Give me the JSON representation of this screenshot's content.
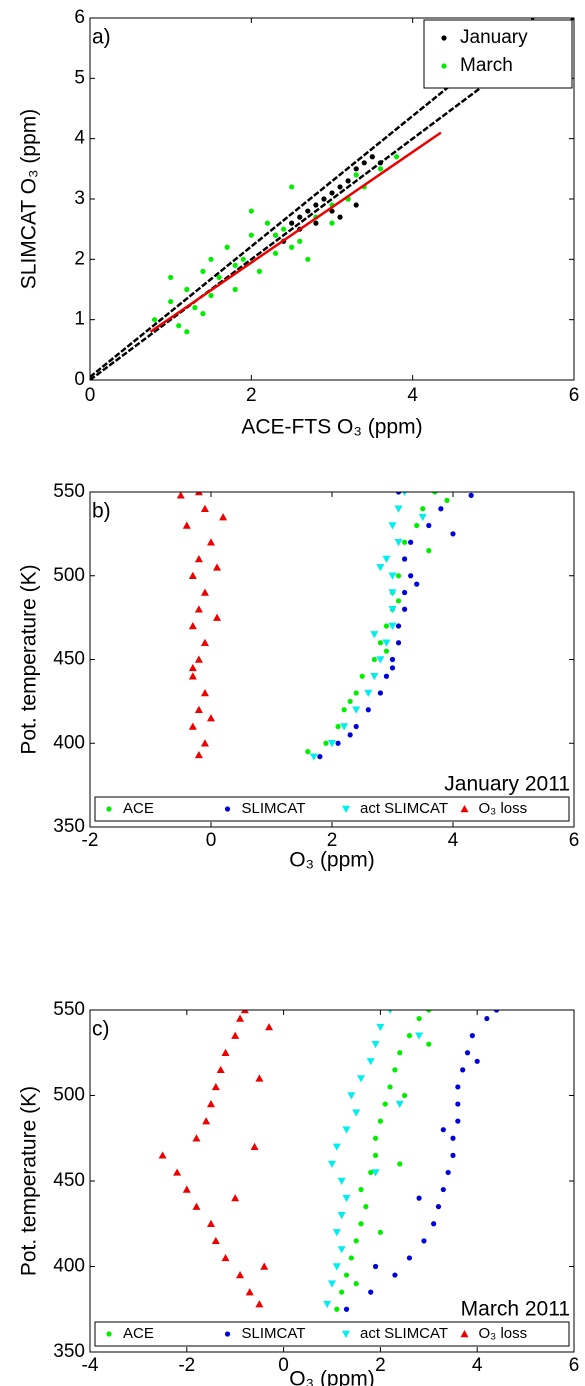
{
  "chart_data": [
    {
      "type": "scatter",
      "annotation": "a)",
      "xlabel": "ACE-FTS O₃ (ppm)",
      "ylabel": "SLIMCAT O₃ (ppm)",
      "xlim": [
        0,
        6
      ],
      "ylim": [
        0,
        6
      ],
      "xticks": [
        0,
        2,
        4,
        6
      ],
      "yticks": [
        0,
        1,
        2,
        3,
        4,
        5,
        6
      ],
      "legend": "upper right",
      "series": [
        {
          "name": "January",
          "color": "#000000",
          "marker": "circle",
          "x": [
            2.3,
            2.5,
            2.6,
            2.7,
            2.8,
            2.9,
            3.0,
            3.1,
            3.2,
            3.3,
            3.4,
            3.5,
            3.6,
            2.4,
            2.8,
            3.0,
            3.2,
            3.3,
            3.1,
            2.6
          ],
          "values": [
            2.4,
            2.6,
            2.7,
            2.8,
            2.9,
            3.0,
            3.1,
            3.2,
            3.3,
            3.5,
            3.6,
            3.7,
            3.6,
            2.3,
            2.6,
            2.8,
            3.0,
            2.9,
            2.7,
            2.5
          ]
        },
        {
          "name": "March",
          "color": "#00ee00",
          "marker": "circle",
          "x": [
            0.8,
            1.0,
            1.1,
            1.2,
            1.3,
            1.4,
            1.5,
            1.6,
            1.7,
            1.8,
            1.9,
            2.0,
            2.1,
            2.2,
            2.3,
            2.4,
            2.5,
            2.6,
            2.8,
            3.0,
            3.2,
            3.4,
            3.6,
            3.8,
            1.2,
            1.5,
            1.8,
            2.0,
            2.3,
            2.7,
            3.0,
            1.0,
            1.4,
            2.5,
            3.3
          ],
          "values": [
            1.0,
            1.3,
            0.9,
            1.5,
            1.2,
            1.8,
            1.4,
            1.7,
            2.2,
            1.9,
            2.0,
            2.4,
            1.8,
            2.6,
            2.1,
            2.5,
            3.2,
            2.3,
            2.7,
            2.6,
            3.0,
            3.2,
            3.5,
            3.7,
            0.8,
            2.0,
            1.5,
            2.8,
            2.4,
            2.0,
            2.9,
            1.7,
            1.1,
            2.2,
            3.4
          ]
        }
      ],
      "lines": [
        {
          "x": [
            0,
            6
          ],
          "values": [
            0,
            6
          ],
          "color": "#000000",
          "dash": true
        },
        {
          "x": [
            0,
            5.5
          ],
          "values": [
            0.05,
            6
          ],
          "color": "#000000",
          "dash": true
        },
        {
          "x": [
            0.75,
            4.35
          ],
          "values": [
            0.8,
            4.1
          ],
          "color": "#ee0000",
          "dash": false
        }
      ]
    },
    {
      "type": "scatter",
      "annotation": "b)",
      "note": "January 2011",
      "xlabel": "O₃ (ppm)",
      "ylabel": "Pot. temperature (K)",
      "xlim": [
        -2,
        6
      ],
      "ylim": [
        350,
        550
      ],
      "xticks": [
        -2,
        0,
        2,
        4,
        6
      ],
      "yticks": [
        350,
        400,
        450,
        500,
        550
      ],
      "legend": "lower center",
      "series": [
        {
          "name": "ACE",
          "color": "#00ee00",
          "marker": "circle",
          "x": [
            1.9,
            2.1,
            2.2,
            2.4,
            2.5,
            2.7,
            2.8,
            2.9,
            3.0,
            3.0,
            3.1,
            3.2,
            3.2,
            3.4,
            3.5,
            3.7,
            1.6,
            2.3,
            2.9,
            3.1,
            3.6,
            3.9
          ],
          "values": [
            400,
            410,
            420,
            430,
            440,
            450,
            460,
            470,
            480,
            490,
            500,
            510,
            520,
            530,
            540,
            550,
            395,
            425,
            455,
            485,
            515,
            545
          ]
        },
        {
          "name": "SLIMCAT",
          "color": "#0000dd",
          "marker": "circle",
          "x": [
            1.8,
            2.1,
            2.4,
            2.6,
            2.8,
            2.9,
            3.0,
            3.1,
            3.1,
            3.2,
            3.2,
            3.3,
            3.2,
            3.3,
            3.6,
            3.8,
            3.1,
            2.3,
            3.0,
            3.4,
            4.0,
            4.3
          ],
          "values": [
            392,
            400,
            410,
            420,
            430,
            440,
            450,
            460,
            470,
            480,
            490,
            500,
            510,
            520,
            530,
            540,
            550,
            405,
            445,
            495,
            525,
            548
          ]
        },
        {
          "name": "act SLIMCAT",
          "color": "#00eeee",
          "marker": "triangle-down",
          "x": [
            1.7,
            2.0,
            2.2,
            2.4,
            2.6,
            2.7,
            2.8,
            2.9,
            3.0,
            3.0,
            3.0,
            3.0,
            2.9,
            3.1,
            3.0,
            3.1,
            3.2,
            2.7,
            2.8,
            3.5
          ],
          "values": [
            392,
            400,
            410,
            420,
            430,
            440,
            450,
            460,
            470,
            480,
            490,
            500,
            510,
            520,
            530,
            540,
            550,
            465,
            505,
            535
          ]
        },
        {
          "name": "O₃ loss",
          "color": "#ee0000",
          "marker": "triangle-up",
          "x": [
            -0.2,
            -0.1,
            -0.3,
            -0.2,
            -0.1,
            -0.3,
            -0.2,
            -0.1,
            -0.3,
            -0.2,
            -0.1,
            -0.3,
            -0.2,
            0.0,
            -0.4,
            -0.1,
            -0.2,
            0.0,
            -0.3,
            0.1,
            0.1,
            0.2,
            -0.5
          ],
          "values": [
            393,
            400,
            410,
            420,
            430,
            440,
            450,
            460,
            470,
            480,
            490,
            500,
            510,
            520,
            530,
            540,
            550,
            415,
            445,
            475,
            505,
            535,
            548
          ]
        }
      ]
    },
    {
      "type": "scatter",
      "annotation": "c)",
      "note": "March 2011",
      "xlabel": "O₃ (ppm)",
      "ylabel": "Pot. temperature (K)",
      "xlim": [
        -4,
        6
      ],
      "ylim": [
        350,
        550
      ],
      "xticks": [
        -4,
        -2,
        0,
        2,
        4,
        6
      ],
      "yticks": [
        350,
        400,
        450,
        500,
        550
      ],
      "legend": "lower center",
      "series": [
        {
          "name": "ACE",
          "color": "#00ee00",
          "marker": "circle",
          "x": [
            1.1,
            1.2,
            1.3,
            1.4,
            1.5,
            1.6,
            1.7,
            1.6,
            1.8,
            1.9,
            1.9,
            2.0,
            2.1,
            2.2,
            2.3,
            2.4,
            2.6,
            2.8,
            3.0,
            1.5,
            2.0,
            2.4,
            2.5,
            3.0
          ],
          "values": [
            375,
            385,
            395,
            405,
            415,
            425,
            435,
            445,
            455,
            465,
            475,
            485,
            495,
            505,
            515,
            525,
            535,
            545,
            550,
            390,
            420,
            460,
            500,
            530
          ]
        },
        {
          "name": "SLIMCAT",
          "color": "#0000dd",
          "marker": "circle",
          "x": [
            1.3,
            1.8,
            2.3,
            2.6,
            2.9,
            3.1,
            3.2,
            3.3,
            3.4,
            3.5,
            3.5,
            3.6,
            3.6,
            3.6,
            3.7,
            3.8,
            3.9,
            4.2,
            4.4,
            1.9,
            2.8,
            3.3,
            4.0
          ],
          "values": [
            375,
            385,
            395,
            405,
            415,
            425,
            435,
            445,
            455,
            465,
            475,
            485,
            495,
            505,
            515,
            525,
            535,
            545,
            550,
            400,
            440,
            480,
            520
          ]
        },
        {
          "name": "act SLIMCAT",
          "color": "#00eeee",
          "marker": "triangle-down",
          "x": [
            0.9,
            1.0,
            1.1,
            1.2,
            1.1,
            1.2,
            1.3,
            1.2,
            1.0,
            1.1,
            1.3,
            1.5,
            1.4,
            1.6,
            1.8,
            1.9,
            2.0,
            2.2,
            1.9,
            2.4,
            2.8
          ],
          "values": [
            378,
            390,
            400,
            410,
            420,
            430,
            440,
            450,
            460,
            470,
            480,
            490,
            500,
            510,
            520,
            530,
            540,
            550,
            455,
            495,
            535
          ]
        },
        {
          "name": "O₃ loss",
          "color": "#ee0000",
          "marker": "triangle-up",
          "x": [
            -0.5,
            -0.7,
            -0.9,
            -1.2,
            -1.4,
            -1.5,
            -1.8,
            -2.0,
            -2.2,
            -2.5,
            -1.8,
            -1.6,
            -1.5,
            -1.4,
            -1.3,
            -1.2,
            -1.0,
            -0.9,
            -0.8,
            -0.4,
            -1.0,
            -0.6,
            -0.5,
            -0.3
          ],
          "values": [
            378,
            385,
            395,
            405,
            415,
            425,
            435,
            445,
            455,
            465,
            475,
            485,
            495,
            505,
            515,
            525,
            535,
            545,
            550,
            400,
            440,
            470,
            510,
            540
          ]
        }
      ]
    }
  ]
}
